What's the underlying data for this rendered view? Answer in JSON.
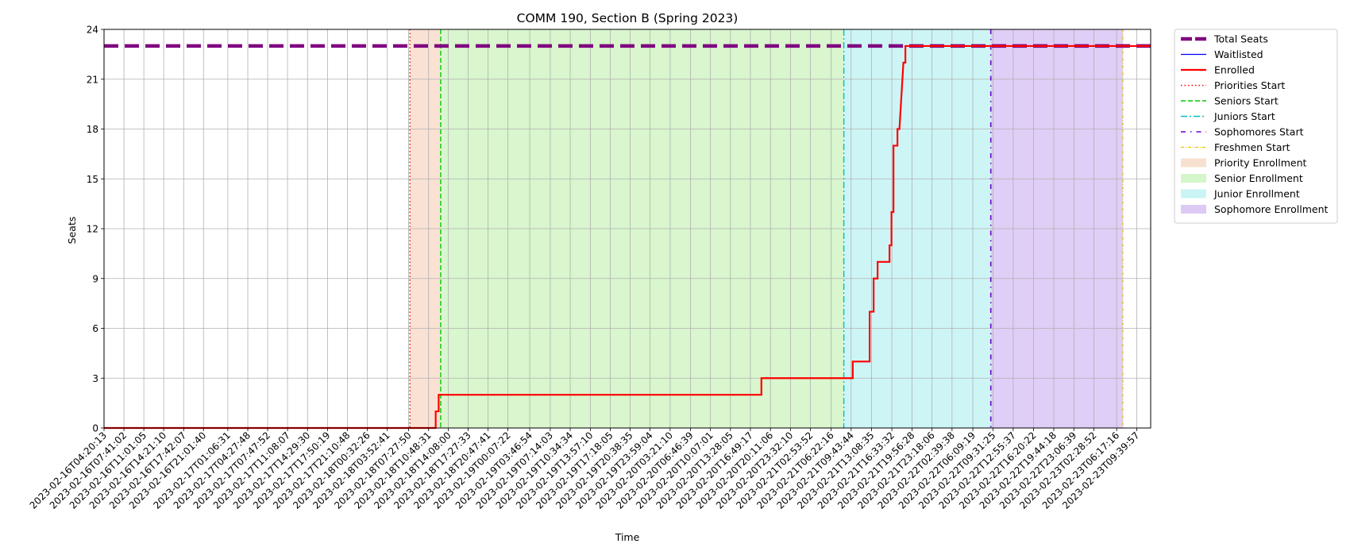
{
  "chart_data": {
    "type": "line",
    "title": "COMM 190, Section B (Spring 2023)",
    "xlabel": "Time",
    "ylabel": "Seats",
    "ylim": [
      0,
      24
    ],
    "yticks": [
      0,
      3,
      6,
      9,
      12,
      15,
      18,
      21,
      24
    ],
    "x_range": [
      "2023-02-16T04:20:13",
      "2023-02-23T12:00:00"
    ],
    "x_tick_labels": [
      "2023-02-16T04:20:13",
      "2023-02-16T07:41:02",
      "2023-02-16T11:01:05",
      "2023-02-16T14:21:10",
      "2023-02-16T17:42:07",
      "2023-02-16T21:01:40",
      "2023-02-17T01:06:31",
      "2023-02-17T04:27:48",
      "2023-02-17T07:47:52",
      "2023-02-17T11:08:07",
      "2023-02-17T14:29:30",
      "2023-02-17T17:50:19",
      "2023-02-17T21:10:48",
      "2023-02-18T00:32:26",
      "2023-02-18T03:52:41",
      "2023-02-18T07:27:50",
      "2023-02-18T10:48:31",
      "2023-02-18T14:08:00",
      "2023-02-18T17:27:33",
      "2023-02-18T20:47:41",
      "2023-02-19T00:07:22",
      "2023-02-19T03:46:54",
      "2023-02-19T07:14:03",
      "2023-02-19T10:34:34",
      "2023-02-19T13:57:10",
      "2023-02-19T17:18:05",
      "2023-02-19T20:38:35",
      "2023-02-19T23:59:04",
      "2023-02-20T03:21:10",
      "2023-02-20T06:46:39",
      "2023-02-20T10:07:01",
      "2023-02-20T13:28:05",
      "2023-02-20T16:49:17",
      "2023-02-20T20:11:06",
      "2023-02-20T23:32:10",
      "2023-02-21T02:53:52",
      "2023-02-21T06:22:16",
      "2023-02-21T09:43:44",
      "2023-02-21T13:08:35",
      "2023-02-21T16:33:32",
      "2023-02-21T19:56:28",
      "2023-02-21T23:18:06",
      "2023-02-22T02:39:38",
      "2023-02-22T06:09:19",
      "2023-02-22T09:31:25",
      "2023-02-22T12:55:37",
      "2023-02-22T16:20:22",
      "2023-02-22T19:44:18",
      "2023-02-22T23:06:39",
      "2023-02-23T02:28:52",
      "2023-02-23T06:17:16",
      "2023-02-23T09:39:57"
    ],
    "series": [
      {
        "name": "Total Seats",
        "color": "#800080",
        "style": "dashed-thick",
        "points": [
          [
            "2023-02-16T04:20:13",
            23
          ],
          [
            "2023-02-23T12:00:00",
            23
          ]
        ]
      },
      {
        "name": "Waitlisted",
        "color": "#0000ff",
        "style": "solid-thin",
        "points": []
      },
      {
        "name": "Enrolled",
        "color": "#ff0000",
        "style": "solid",
        "points": [
          [
            "2023-02-16T04:20:13",
            0
          ],
          [
            "2023-02-18T12:00:00",
            0
          ],
          [
            "2023-02-18T12:00:00",
            1
          ],
          [
            "2023-02-18T12:30:00",
            1
          ],
          [
            "2023-02-18T12:30:00",
            2
          ],
          [
            "2023-02-20T18:40:00",
            2
          ],
          [
            "2023-02-20T18:40:00",
            3
          ],
          [
            "2023-02-21T10:00:00",
            3
          ],
          [
            "2023-02-21T10:00:00",
            4
          ],
          [
            "2023-02-21T12:50:00",
            4
          ],
          [
            "2023-02-21T12:50:00",
            7
          ],
          [
            "2023-02-21T13:30:00",
            7
          ],
          [
            "2023-02-21T13:30:00",
            9
          ],
          [
            "2023-02-21T14:10:00",
            9
          ],
          [
            "2023-02-21T14:10:00",
            10
          ],
          [
            "2023-02-21T16:10:00",
            10
          ],
          [
            "2023-02-21T16:10:00",
            11
          ],
          [
            "2023-02-21T16:30:00",
            11
          ],
          [
            "2023-02-21T16:30:00",
            13
          ],
          [
            "2023-02-21T16:50:00",
            13
          ],
          [
            "2023-02-21T16:50:00",
            17
          ],
          [
            "2023-02-21T17:30:00",
            17
          ],
          [
            "2023-02-21T17:30:00",
            18
          ],
          [
            "2023-02-21T17:50:00",
            18
          ],
          [
            "2023-02-21T18:10:00",
            20
          ],
          [
            "2023-02-21T18:30:00",
            22
          ],
          [
            "2023-02-21T18:50:00",
            22
          ],
          [
            "2023-02-21T18:50:00",
            23
          ],
          [
            "2023-02-23T12:00:00",
            23
          ]
        ]
      }
    ],
    "phase_starts": [
      {
        "name": "Priorities Start",
        "time": "2023-02-18T07:40:00",
        "color": "#ff0000",
        "style": "dotted"
      },
      {
        "name": "Seniors Start",
        "time": "2023-02-18T12:50:00",
        "color": "#00cc00",
        "style": "dashed"
      },
      {
        "name": "Juniors Start",
        "time": "2023-02-21T08:30:00",
        "color": "#00bfbf",
        "style": "dashdot"
      },
      {
        "name": "Sophomores Start",
        "time": "2023-02-22T09:10:00",
        "color": "#6600cc",
        "style": "dashdot-loose"
      },
      {
        "name": "Freshmen Start",
        "time": "2023-02-23T07:20:00",
        "color": "#e6c800",
        "style": "dashdot-fine"
      }
    ],
    "phase_regions": [
      {
        "name": "Priority Enrollment",
        "start": "2023-02-18T07:40:00",
        "end": "2023-02-18T12:50:00",
        "color": "#f4cbb0"
      },
      {
        "name": "Senior Enrollment",
        "start": "2023-02-18T12:50:00",
        "end": "2023-02-21T08:30:00",
        "color": "#b9efa6"
      },
      {
        "name": "Junior Enrollment",
        "start": "2023-02-21T08:30:00",
        "end": "2023-02-22T09:10:00",
        "color": "#a6ecef"
      },
      {
        "name": "Sophomore Enrollment",
        "start": "2023-02-22T09:10:00",
        "end": "2023-02-23T07:20:00",
        "color": "#c4a6ef"
      }
    ],
    "legend": {
      "placement": "outside-right-top",
      "entries": [
        "Total Seats",
        "Waitlisted",
        "Enrolled",
        "Priorities Start",
        "Seniors Start",
        "Juniors Start",
        "Sophomores Start",
        "Freshmen Start",
        "Priority Enrollment",
        "Senior Enrollment",
        "Junior Enrollment",
        "Sophomore Enrollment"
      ]
    },
    "grid": true
  }
}
